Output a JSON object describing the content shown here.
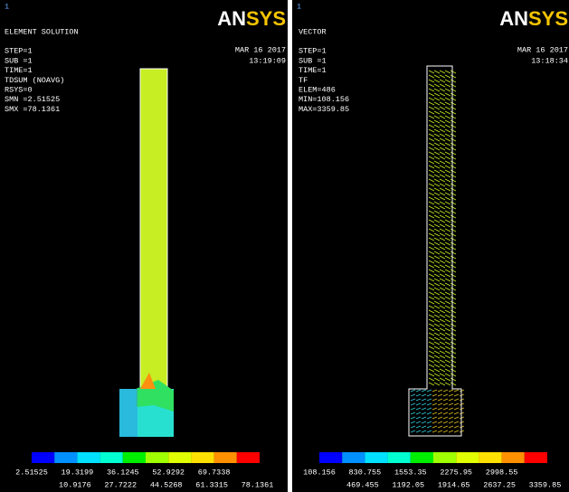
{
  "panels": [
    {
      "window_number": "1",
      "logo_an": "AN",
      "logo_sys": "SYS",
      "date": "MAR 16 2017",
      "time": "13:19:09",
      "info": [
        "ELEMENT SOLUTION",
        "",
        "STEP=1",
        "SUB =1",
        "TIME=1",
        "TDSUM    (NOAVG)",
        "RSYS=0",
        "SMN =2.51525",
        "SMX =78.1361"
      ],
      "legend_top": [
        "2.51525",
        "19.3199",
        "36.1245",
        "52.9292",
        "69.7338"
      ],
      "legend_bottom": [
        "10.9176",
        "27.7222",
        "44.5268",
        "61.3315",
        "78.1361"
      ]
    },
    {
      "window_number": "1",
      "logo_an": "AN",
      "logo_sys": "SYS",
      "date": "MAR 16 2017",
      "time": "13:18:34",
      "info": [
        "VECTOR",
        "",
        "STEP=1",
        "SUB =1",
        "TIME=1",
        "TF",
        "ELEM=486",
        "MIN=108.156",
        "MAX=3359.85"
      ],
      "legend_top": [
        "108.156",
        "830.755",
        "1553.35",
        "2275.95",
        "2998.55"
      ],
      "legend_bottom": [
        "469.455",
        "1192.05",
        "1914.65",
        "2637.25",
        "3359.85"
      ]
    }
  ]
}
